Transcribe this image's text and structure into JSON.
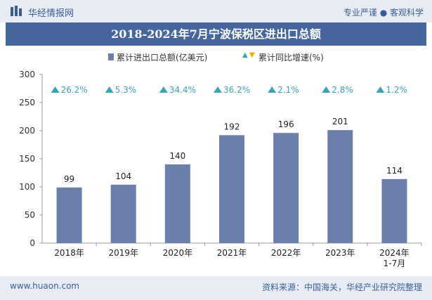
{
  "header": {
    "brand": "华经情报网",
    "slogan": "专业严谨 ● 客观科学"
  },
  "footer": {
    "site": "www.huaon.com",
    "source": "资料来源：中国海关，华经产业研究院整理"
  },
  "colors": {
    "bar": "#6a80aa",
    "title_bg": "#45679d",
    "triangle": "#3ba3b8",
    "accent": "#e6b000"
  },
  "chart_data": {
    "type": "bar",
    "title": "2018-2024年7月宁波保税区进出口总额",
    "categories": [
      "2018年",
      "2019年",
      "2020年",
      "2021年",
      "2022年",
      "2023年",
      "2024年\n1-7月"
    ],
    "series": [
      {
        "name": "累计进出口总额(亿美元)",
        "values": [
          99,
          104,
          140,
          192,
          196,
          201,
          114
        ]
      },
      {
        "name": "累计同比增速(%)",
        "values": [
          26.2,
          5.3,
          34.4,
          36.2,
          2.1,
          2.8,
          1.2
        ],
        "labels": [
          "26.2%",
          "5.3%",
          "34.4%",
          "36.2%",
          "2.1%",
          "2.8%",
          "1.2%"
        ]
      }
    ],
    "ylim": [
      0,
      300
    ],
    "yticks": [
      0,
      50,
      100,
      150,
      200,
      250,
      300
    ],
    "legend": [
      "累计进出口总额(亿美元)",
      "累计同比增速(%)"
    ]
  }
}
